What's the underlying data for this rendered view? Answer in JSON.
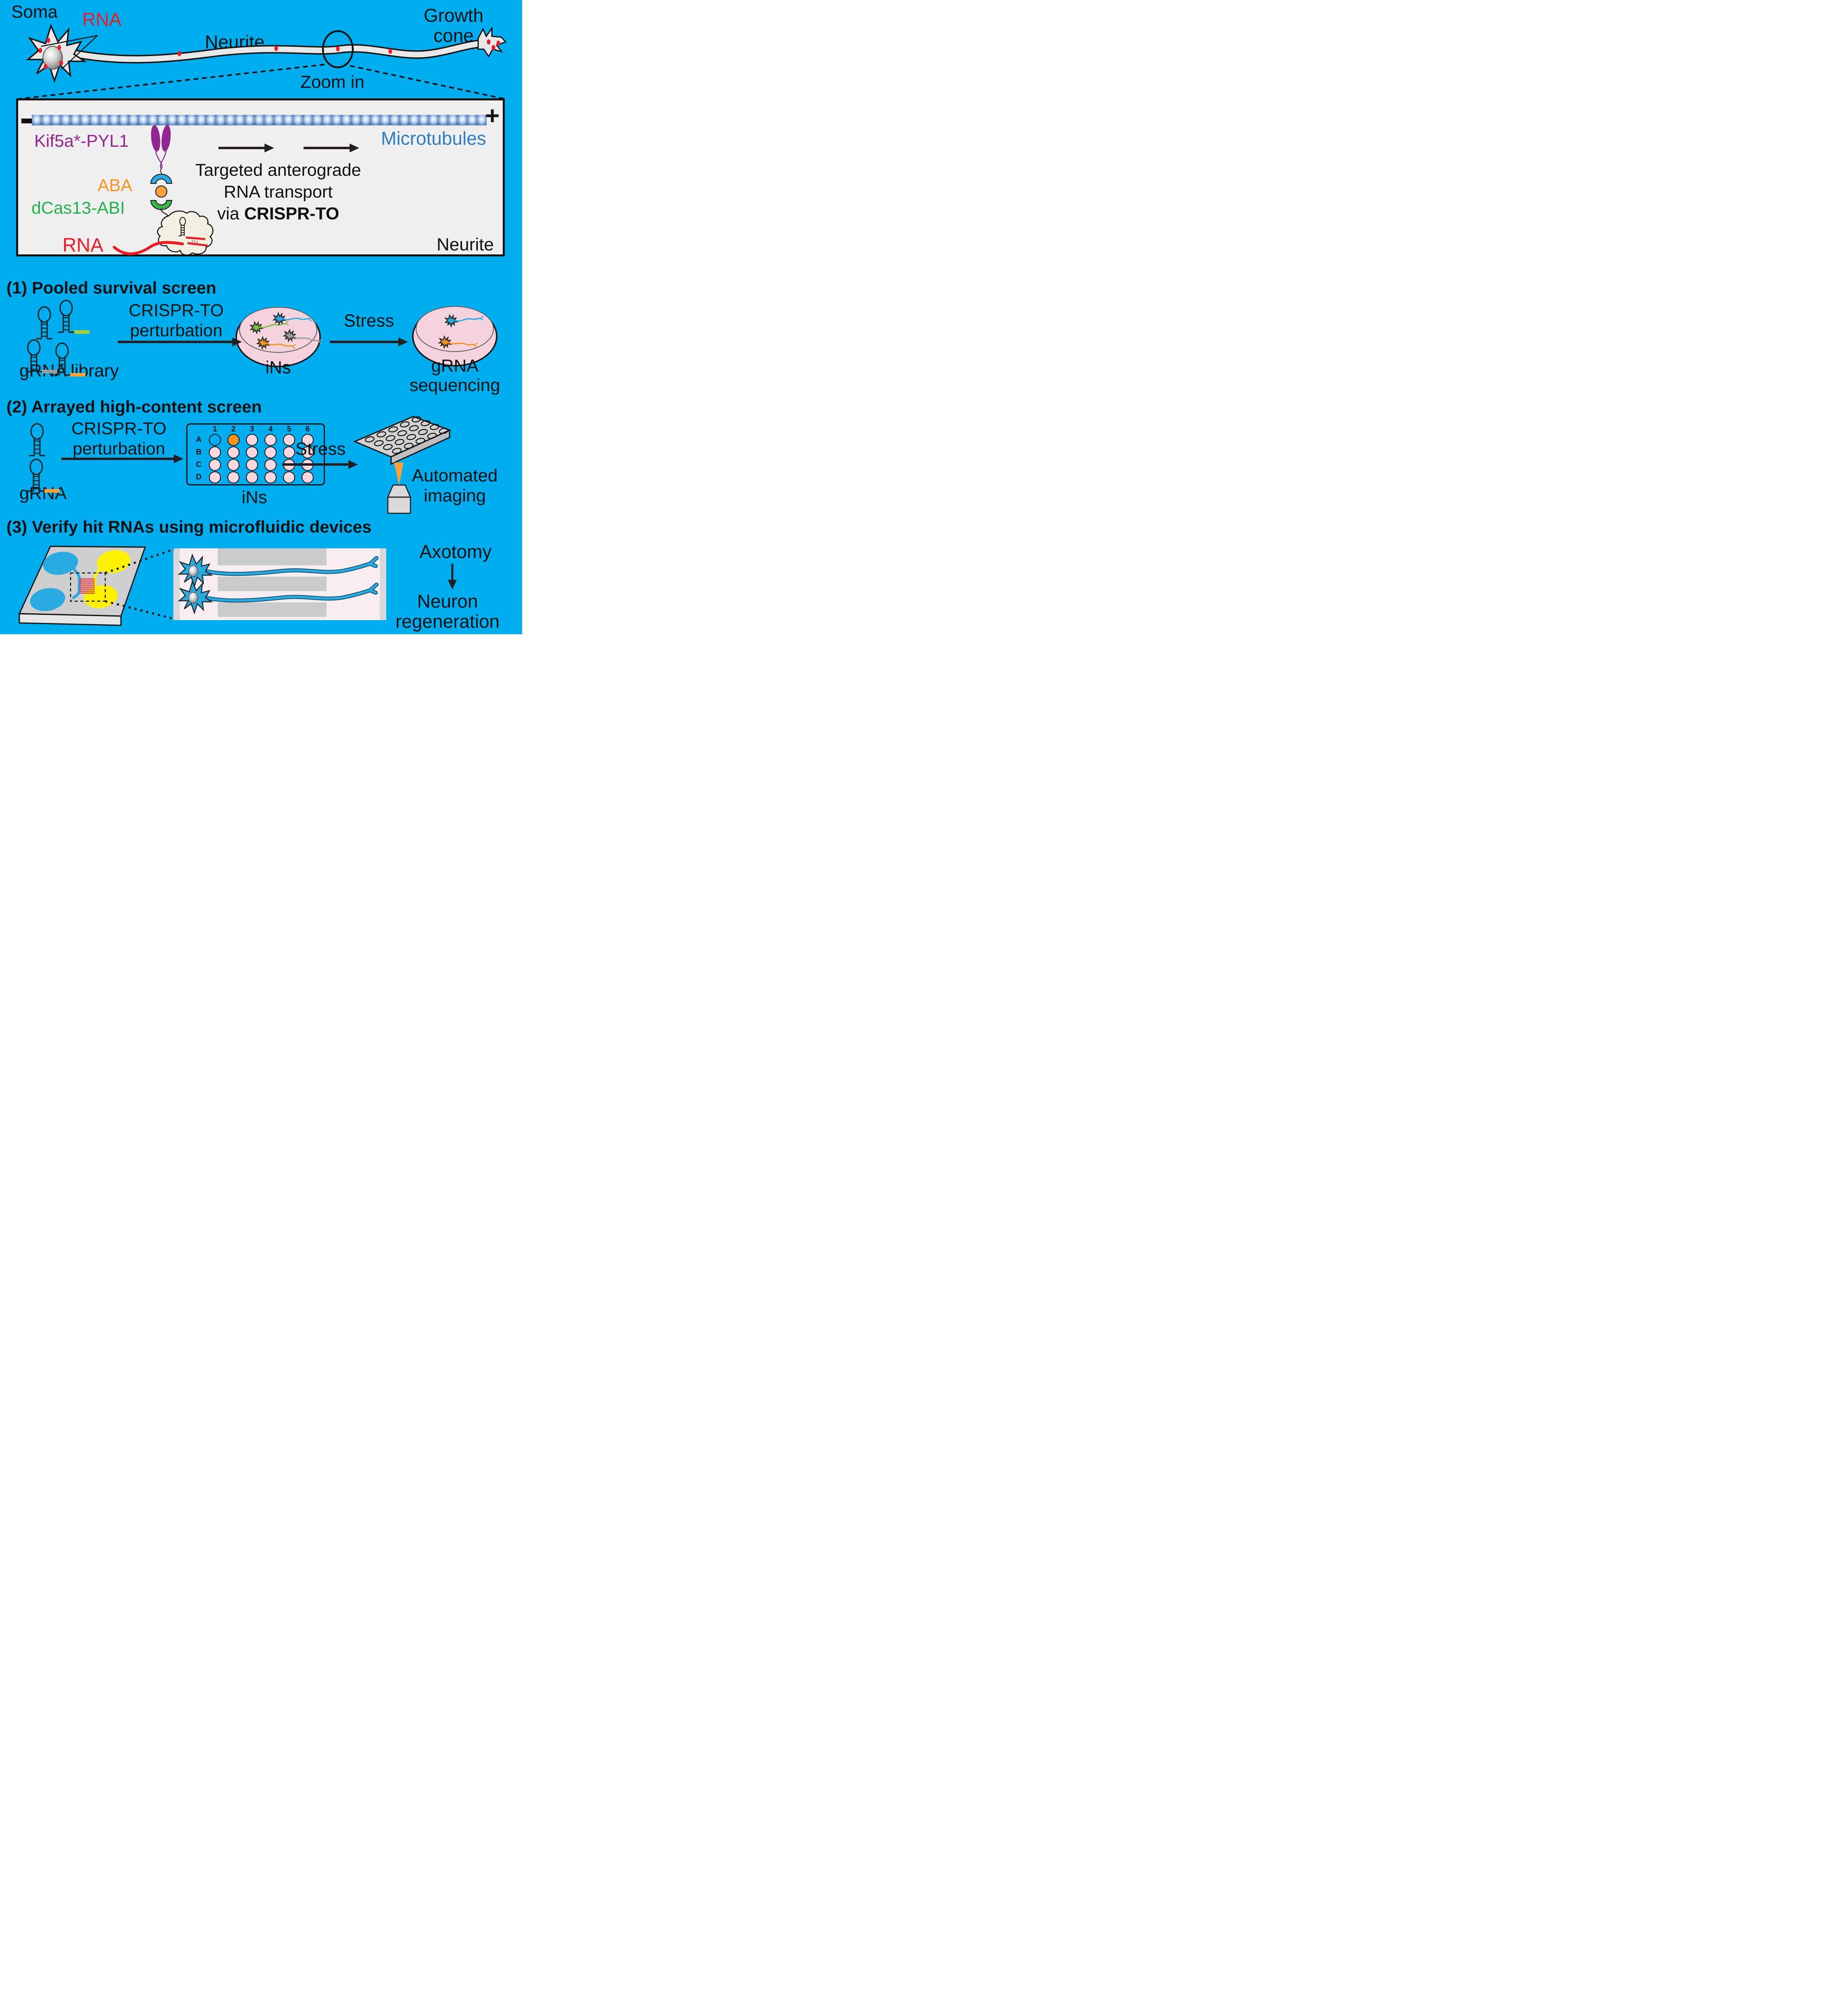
{
  "colors": {
    "background": "#00AEEF",
    "mechanism_box_bg": "#EFEFEF",
    "purple": "#92278F",
    "orange": "#F7941E",
    "green": "#22B14C",
    "red": "#ED1C24",
    "microtubule_blue": "#2E7EC1",
    "neuron_blue": "#29ABE2",
    "neuron_green": "#7AC143",
    "neuron_gray": "#9E9E9E",
    "neuron_orange": "#F7941E",
    "dish_pink": "#F4D3DE",
    "well_pink": "#F9D7DE",
    "device_yellow": "#FFF200",
    "grna_tail_green": "#A6CE39",
    "grna_tail_gray": "#9E9E9E",
    "grna_tail_orange": "#F9A03C"
  },
  "top": {
    "soma": "Soma",
    "rna": "RNA",
    "neurite": "Neurite",
    "growth_cone_line1": "Growth",
    "growth_cone_line2": "cone",
    "zoom_in": "Zoom in"
  },
  "mechanism": {
    "minus": "−",
    "plus": "+",
    "kif5a": "Kif5a*-PYL1",
    "aba": "ABA",
    "dcas13": "dCas13-ABI",
    "rna": "RNA",
    "microtubules": "Microtubules",
    "neurite": "Neurite",
    "caption_line1": "Targeted anterograde",
    "caption_line2": "RNA transport",
    "caption_line3_prefix": "via ",
    "caption_line3_bold": "CRISPR-TO"
  },
  "screen1": {
    "title": "(1) Pooled survival screen",
    "perturbation_line1": "CRISPR-TO",
    "perturbation_line2": "perturbation",
    "grna_library": "gRNA library",
    "dish_label": "iNs",
    "stress": "Stress",
    "sequencing_line1": "gRNA",
    "sequencing_line2": "sequencing"
  },
  "screen2": {
    "title": "(2) Arrayed high-content screen",
    "perturbation_line1": "CRISPR-TO",
    "perturbation_line2": "perturbation",
    "grna": "gRNA",
    "plate_columns": [
      "1",
      "2",
      "3",
      "4",
      "5",
      "6"
    ],
    "plate_rows": [
      "A",
      "B",
      "C",
      "D"
    ],
    "plate_label": "iNs",
    "stress": "Stress",
    "imaging_line1": "Automated",
    "imaging_line2": "imaging"
  },
  "screen3": {
    "title": "(3) Verify hit RNAs using microfluidic devices",
    "axotomy": "Axotomy",
    "outcome_line1": "Neuron",
    "outcome_line2": "regeneration"
  }
}
